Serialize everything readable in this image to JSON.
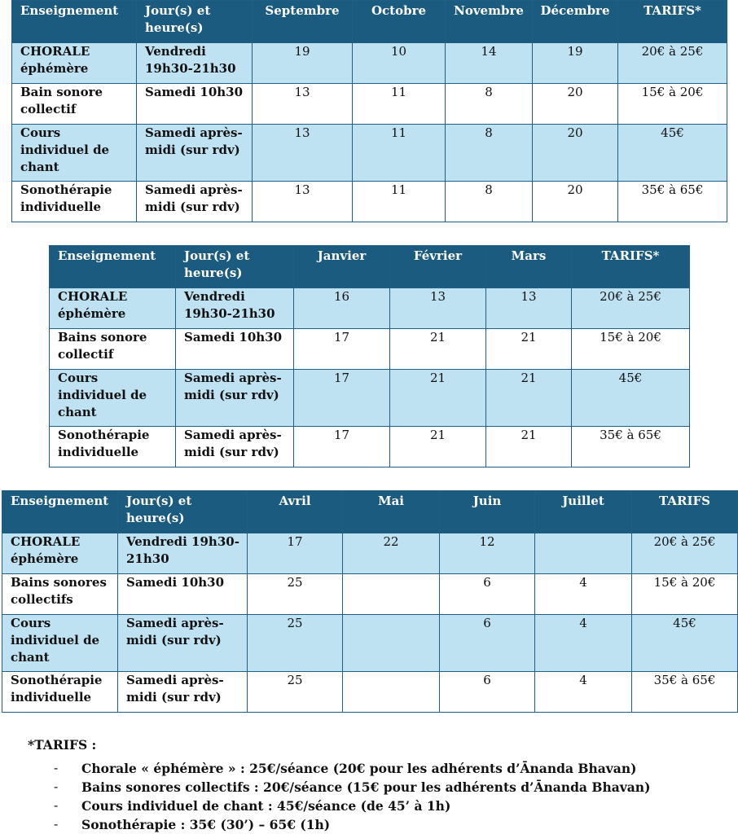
{
  "tables": [
    {
      "headers": [
        "Enseignement",
        "Jour(s) et heure(s)",
        "Septembre",
        "Octobre",
        "Novembre",
        "Décembre",
        "TARIFS*"
      ],
      "rows": [
        {
          "name": "CHORALE éphémère",
          "day": "Vendredi 19h30-21h30",
          "vals": [
            "19",
            "10",
            "14",
            "19"
          ],
          "price": "20€ à 25€"
        },
        {
          "name": "Bain sonore collectif",
          "day": "Samedi 10h30",
          "vals": [
            "13",
            "11",
            "8",
            "20"
          ],
          "price": "15€ à 20€"
        },
        {
          "name": "Cours individuel de chant",
          "day": "Samedi après-midi (sur rdv)",
          "vals": [
            "13",
            "11",
            "8",
            "20"
          ],
          "price": "45€"
        },
        {
          "name": "Sonothérapie individuelle",
          "day": "Samedi après-midi (sur rdv)",
          "vals": [
            "13",
            "11",
            "8",
            "20"
          ],
          "price": "35€ à 65€"
        }
      ]
    },
    {
      "headers": [
        "Enseignement",
        "Jour(s) et heure(s)",
        "Janvier",
        "Février",
        "Mars",
        "TARIFS*"
      ],
      "rows": [
        {
          "name": "CHORALE éphémère",
          "day": "Vendredi 19h30-21h30",
          "vals": [
            "16",
            "13",
            "13"
          ],
          "price": "20€ à 25€"
        },
        {
          "name": "Bains sonore collectif",
          "day": "Samedi 10h30",
          "vals": [
            "17",
            "21",
            "21"
          ],
          "price": "15€ à 20€"
        },
        {
          "name": "Cours individuel de chant",
          "day": "Samedi après-midi (sur rdv)",
          "vals": [
            "17",
            "21",
            "21"
          ],
          "price": "45€"
        },
        {
          "name": "Sonothérapie individuelle",
          "day": "Samedi après-midi (sur rdv)",
          "vals": [
            "17",
            "21",
            "21"
          ],
          "price": "35€ à 65€"
        }
      ]
    },
    {
      "headers": [
        "Enseignement",
        "Jour(s) et heure(s)",
        "Avril",
        "Mai",
        "Juin",
        "Juillet",
        "TARIFS"
      ],
      "rows": [
        {
          "name": "CHORALE éphémère",
          "day": "Vendredi 19h30-21h30",
          "vals": [
            "17",
            "22",
            "12",
            ""
          ],
          "price": "20€ à 25€"
        },
        {
          "name": "Bains sonores collectifs",
          "day": "Samedi 10h30",
          "vals": [
            "25",
            "",
            "6",
            "4"
          ],
          "price": "15€ à 20€"
        },
        {
          "name": "Cours individuel de chant",
          "day": "Samedi après-midi (sur rdv)",
          "vals": [
            "25",
            "",
            "6",
            "4"
          ],
          "price": "45€"
        },
        {
          "name": "Sonothérapie individuelle",
          "day": "Samedi après-midi (sur rdv)",
          "vals": [
            "25",
            "",
            "6",
            "4"
          ],
          "price": "35€ à 65€"
        }
      ]
    }
  ],
  "notes": {
    "title": "*TARIFS :",
    "bullet": "-",
    "items": [
      "Chorale « éphémère » : 25€/séance (20€ pour les adhérents d’Ānanda Bhavan)",
      "Bains sonores collectifs : 20€/séance (15€ pour les adhérents d’Ānanda Bhavan)",
      "Cours individuel de chant : 45€/séance (de 45’ à 1h)",
      "Sonothérapie : 35€ (30’) – 65€ (1h)"
    ]
  }
}
